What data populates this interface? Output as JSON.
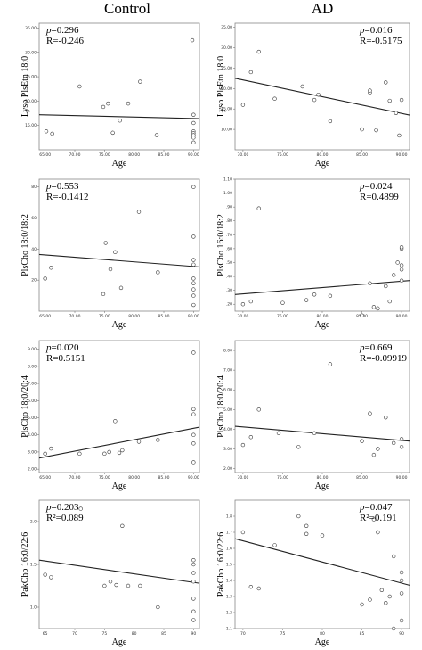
{
  "column_titles": {
    "control": "Control",
    "ad": "AD"
  },
  "chart_data": [
    {
      "id": "c1",
      "type": "scatter",
      "panel": "Control row 1",
      "xlabel": "Age",
      "ylabel": "Lyso PlsEtn 18:0",
      "xlim": [
        64,
        91
      ],
      "ylim": [
        10,
        36
      ],
      "xticks": [
        65,
        70,
        75,
        80,
        85,
        90
      ],
      "xtick_labels": [
        "65.00",
        "70.00",
        "75.00",
        "80.00",
        "85.00",
        "90.00"
      ],
      "yticks": [
        15,
        20,
        25,
        30,
        35
      ],
      "ytick_labels": [
        "15.00",
        "20.00",
        "25.00",
        "30.00",
        "35.00"
      ],
      "annotation_p": "0.296",
      "annotation_r": "R=-0.246",
      "fit": {
        "x": [
          64,
          91
        ],
        "y": [
          17.2,
          16.4
        ]
      },
      "x": [
        65.2,
        66.2,
        70.8,
        74.8,
        75.6,
        76.4,
        77.6,
        79,
        81,
        83.8,
        89.8,
        90,
        90,
        90,
        90,
        90,
        90,
        90
      ],
      "y": [
        13.8,
        13.3,
        23,
        18.8,
        19.5,
        13.5,
        16,
        19.5,
        24,
        13,
        32.5,
        17.2,
        15.5,
        13.8,
        13.4,
        13,
        12.5,
        11.5
      ]
    },
    {
      "id": "a1",
      "type": "scatter",
      "panel": "AD row 1",
      "xlabel": "Age",
      "ylabel": "Lyso PlsEtn 18:0",
      "xlim": [
        69,
        91
      ],
      "ylim": [
        5,
        36
      ],
      "xticks": [
        70,
        75,
        80,
        85,
        90
      ],
      "xtick_labels": [
        "70.00",
        "75.00",
        "80.00",
        "85.00",
        "90.00"
      ],
      "yticks": [
        10,
        15,
        20,
        25,
        30,
        35
      ],
      "ytick_labels": [
        "10.00",
        "15.00",
        "20.00",
        "25.00",
        "30.00",
        "35.00"
      ],
      "annotation_p": "0.016",
      "annotation_r": "R=-0.5175",
      "fit": {
        "x": [
          69,
          91
        ],
        "y": [
          22.5,
          13.5
        ]
      },
      "x": [
        70,
        71,
        72,
        74,
        77.5,
        79,
        79.5,
        81,
        85,
        86,
        86,
        86.8,
        88,
        88.5,
        89.3,
        89.7,
        90
      ],
      "y": [
        16,
        24,
        29,
        17.5,
        20.5,
        17.2,
        18.5,
        12,
        10,
        19,
        19.5,
        9.8,
        21.5,
        17,
        14,
        8.5,
        17.2
      ]
    },
    {
      "id": "c2",
      "type": "scatter",
      "panel": "Control row 2",
      "xlabel": "Age",
      "ylabel": "PlsCho 18:0/18:2",
      "xlim": [
        64,
        91
      ],
      "ylim": [
        0,
        85
      ],
      "xticks": [
        65,
        70,
        75,
        80,
        85,
        90
      ],
      "xtick_labels": [
        "65.00",
        "70.00",
        "75.00",
        "80.00",
        "85.00",
        "90.00"
      ],
      "yticks": [
        20,
        40,
        60,
        80
      ],
      "ytick_labels": [
        "20",
        "40",
        "60",
        "80"
      ],
      "annotation_p": "0.553",
      "annotation_r": "R=-0.1412",
      "fit": {
        "x": [
          64,
          91
        ],
        "y": [
          36.5,
          28.5
        ]
      },
      "x": [
        65,
        66,
        74.8,
        75.2,
        76,
        76.8,
        77.8,
        80.8,
        84,
        90,
        90,
        90,
        90,
        90,
        90,
        90,
        90,
        90
      ],
      "y": [
        21,
        28,
        11,
        44,
        27,
        38,
        15,
        64,
        25,
        80,
        48,
        33,
        30,
        21,
        18,
        14,
        10,
        4
      ]
    },
    {
      "id": "a2",
      "type": "scatter",
      "panel": "AD row 2",
      "xlabel": "Age",
      "ylabel": "PlsCho 16:0/18:2",
      "xlim": [
        69,
        91
      ],
      "ylim": [
        0.15,
        1.1
      ],
      "xticks": [
        70,
        75,
        80,
        85,
        90
      ],
      "xtick_labels": [
        "70.00",
        "75.00",
        "80.00",
        "85.00",
        "90.00"
      ],
      "yticks": [
        0.2,
        0.3,
        0.4,
        0.5,
        0.6,
        0.7,
        0.8,
        0.9,
        1.0,
        1.1
      ],
      "ytick_labels": [
        ".20",
        ".30",
        ".40",
        ".50",
        ".60",
        ".70",
        ".80",
        ".90",
        "1.00",
        "1.10"
      ],
      "annotation_p": "0.024",
      "annotation_r": "R=0.4899",
      "fit": {
        "x": [
          69,
          91
        ],
        "y": [
          0.27,
          0.37
        ]
      },
      "x": [
        70,
        71,
        72,
        75,
        78,
        79,
        81,
        85,
        86,
        86.5,
        87,
        88,
        88.5,
        89,
        89.5,
        90,
        90,
        90,
        90,
        90
      ],
      "y": [
        0.2,
        0.22,
        0.89,
        0.21,
        0.23,
        0.27,
        0.26,
        0.12,
        0.35,
        0.18,
        0.17,
        0.33,
        0.22,
        0.41,
        0.5,
        0.6,
        0.61,
        0.45,
        0.37,
        0.48
      ]
    },
    {
      "id": "c3",
      "type": "scatter",
      "panel": "Control row 3",
      "xlabel": "Age",
      "ylabel": "PlsCho 18:0/20:4",
      "xlim": [
        64,
        91
      ],
      "ylim": [
        1.8,
        9.5
      ],
      "xticks": [
        65,
        70,
        75,
        80,
        85,
        90
      ],
      "xtick_labels": [
        "65.00",
        "70.00",
        "75.00",
        "80.00",
        "85.00",
        "90.00"
      ],
      "yticks": [
        2,
        3,
        4,
        5,
        6,
        7,
        8,
        9
      ],
      "ytick_labels": [
        "2.00",
        "3.00",
        "4.00",
        "5.00",
        "6.00",
        "7.00",
        "8.00",
        "9.00"
      ],
      "annotation_p": "0.020",
      "annotation_r": "R=0.5151",
      "fit": {
        "x": [
          64,
          91
        ],
        "y": [
          2.65,
          4.45
        ]
      },
      "x": [
        65,
        66,
        70.8,
        75,
        75.8,
        76.8,
        77.5,
        78,
        80.8,
        84,
        90,
        90,
        90,
        90,
        90,
        90
      ],
      "y": [
        2.9,
        3.2,
        2.9,
        2.9,
        3.0,
        4.8,
        2.95,
        3.1,
        3.6,
        3.7,
        8.8,
        5.5,
        5.2,
        4.0,
        3.5,
        2.4
      ]
    },
    {
      "id": "a3",
      "type": "scatter",
      "panel": "AD row 3",
      "xlabel": "Age",
      "ylabel": "PlsCho 18:0/20:4",
      "xlim": [
        69,
        91
      ],
      "ylim": [
        1.8,
        8.5
      ],
      "xticks": [
        70,
        75,
        80,
        85,
        90
      ],
      "xtick_labels": [
        "70.00",
        "75.00",
        "80.00",
        "85.00",
        "90.00"
      ],
      "yticks": [
        2,
        3,
        4,
        5,
        6,
        7,
        8
      ],
      "ytick_labels": [
        "2.00",
        "3.00",
        "4.00",
        "5.00",
        "6.00",
        "7.00",
        "8.00"
      ],
      "annotation_p": "0.669",
      "annotation_r": "R=-0.09919",
      "fit": {
        "x": [
          69,
          91
        ],
        "y": [
          4.15,
          3.4
        ]
      },
      "x": [
        70,
        71,
        72,
        74.5,
        77,
        79,
        81,
        85,
        86,
        86.5,
        87,
        88,
        89,
        90,
        90
      ],
      "y": [
        3.2,
        3.6,
        5.0,
        3.8,
        3.1,
        3.8,
        7.3,
        3.4,
        4.8,
        2.7,
        3.0,
        4.6,
        3.3,
        3.5,
        3.1
      ]
    },
    {
      "id": "c4",
      "type": "scatter",
      "panel": "Control row 4",
      "xlabel": "Age",
      "ylabel": "PakCho 16:0/22:6",
      "xlim": [
        64,
        91
      ],
      "ylim": [
        0.75,
        2.25
      ],
      "xticks": [
        65,
        70,
        75,
        80,
        85,
        90
      ],
      "xtick_labels": [
        "65",
        "70",
        "75",
        "80",
        "85",
        "90"
      ],
      "yticks": [
        1.0,
        1.5,
        2.0
      ],
      "ytick_labels": [
        "1.0",
        "1.5",
        "2.0"
      ],
      "annotation_p": "0.203",
      "annotation_r": "R²=0.089",
      "fit": {
        "x": [
          64,
          91
        ],
        "y": [
          1.55,
          1.28
        ]
      },
      "x": [
        65,
        66,
        71,
        75,
        76,
        77,
        78,
        79,
        81,
        84,
        90,
        90,
        90,
        90,
        90,
        90,
        90
      ],
      "y": [
        1.38,
        1.35,
        2.15,
        1.25,
        1.3,
        1.26,
        1.95,
        1.25,
        1.25,
        1.0,
        1.55,
        1.5,
        1.4,
        1.3,
        1.1,
        0.95,
        0.85
      ]
    },
    {
      "id": "a4",
      "type": "scatter",
      "panel": "AD row 4",
      "xlabel": "Age",
      "ylabel": "PakCho 16:0/22:6",
      "xlim": [
        69,
        91
      ],
      "ylim": [
        1.1,
        1.9
      ],
      "xticks": [
        70,
        75,
        80,
        85,
        90
      ],
      "xtick_labels": [
        "70",
        "75",
        "80",
        "85",
        "90"
      ],
      "yticks": [
        1.1,
        1.2,
        1.3,
        1.4,
        1.5,
        1.6,
        1.7,
        1.8
      ],
      "ytick_labels": [
        "1.1",
        "1.2",
        "1.3",
        "1.4",
        "1.5",
        "1.6",
        "1.7",
        "1.8"
      ],
      "annotation_p": "0.047",
      "annotation_r": "R²=0.191",
      "fit": {
        "x": [
          69,
          91
        ],
        "y": [
          1.66,
          1.37
        ]
      },
      "x": [
        70,
        71,
        72,
        74,
        77,
        78,
        78,
        80,
        85,
        86,
        86.5,
        87,
        87.5,
        88,
        88.5,
        89,
        89,
        90,
        90,
        90,
        90
      ],
      "y": [
        1.7,
        1.36,
        1.35,
        1.62,
        1.8,
        1.74,
        1.69,
        1.68,
        1.25,
        1.28,
        1.78,
        1.7,
        1.34,
        1.26,
        1.3,
        1.55,
        1.1,
        1.45,
        1.4,
        1.32,
        1.15
      ]
    }
  ]
}
